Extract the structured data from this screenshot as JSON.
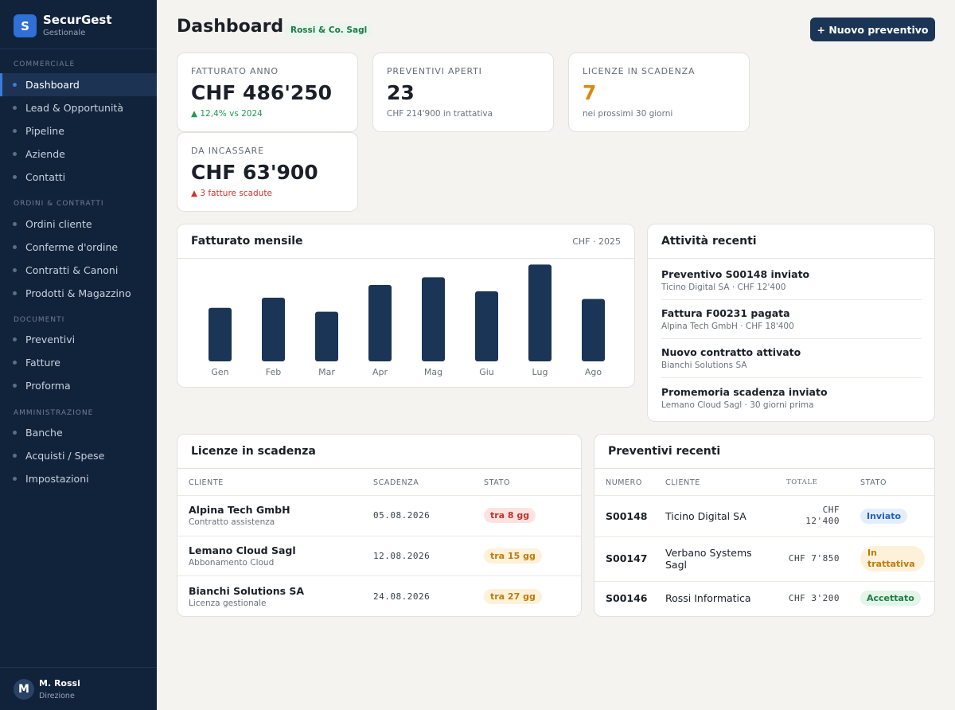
{
  "brand": {
    "logo_letter": "S",
    "name": "SecurGest",
    "subtitle": "Gestionale"
  },
  "sidebar": {
    "sections": [
      {
        "title": "COMMERCIALE",
        "items": [
          "Dashboard",
          "Lead & Opportunità",
          "Pipeline",
          "Aziende",
          "Contatti"
        ]
      },
      {
        "title": "ORDINI & CONTRATTI",
        "items": [
          "Ordini cliente",
          "Conferme d'ordine",
          "Contratti & Canoni",
          "Prodotti & Magazzino"
        ]
      },
      {
        "title": "DOCUMENTI",
        "items": [
          "Preventivi",
          "Fatture",
          "Proforma"
        ]
      },
      {
        "title": "AMMINISTRAZIONE",
        "items": [
          "Banche",
          "Acquisti / Spese",
          "Impostazioni"
        ]
      }
    ],
    "active_item": "Dashboard"
  },
  "user": {
    "initial": "M",
    "name": "M. Rossi",
    "role": "Direzione"
  },
  "header": {
    "title": "Dashboard",
    "company": "Rossi & Co. Sagl",
    "new_button": "+ Nuovo preventivo"
  },
  "kpis": [
    {
      "label": "FATTURATO ANNO",
      "value": "CHF 486'250",
      "sub": "▲ 12,4% vs 2024"
    },
    {
      "label": "PREVENTIVI APERTI",
      "value": "23",
      "sub": "CHF 214'900 in trattativa"
    },
    {
      "label": "LICENZE IN SCADENZA",
      "value": "7",
      "sub": "nei prossimi 30 giorni"
    },
    {
      "label": "DA INCASSARE",
      "value": "CHF 63'900",
      "sub": "▲ 3 fatture scadute"
    }
  ],
  "revenue_panel": {
    "title": "Fatturato mensile",
    "meta": "CHF · 2025"
  },
  "chart_data": {
    "type": "bar",
    "categories": [
      "Gen",
      "Feb",
      "Mar",
      "Apr",
      "Mag",
      "Giu",
      "Lug",
      "Ago"
    ],
    "values": [
      42,
      50,
      39,
      60,
      66,
      55,
      76,
      49
    ],
    "ylim": [
      0,
      80
    ],
    "grid": false,
    "bar_color": "#1b3556"
  },
  "activity_panel": {
    "title": "Attività recenti",
    "items": [
      {
        "title": "Preventivo S00148 inviato",
        "sub": "Ticino Digital SA · CHF 12'400"
      },
      {
        "title": "Fattura F00231 pagata",
        "sub": "Alpina Tech GmbH · CHF 18'400"
      },
      {
        "title": "Nuovo contratto attivato",
        "sub": "Bianchi Solutions SA"
      },
      {
        "title": "Promemoria scadenza inviato",
        "sub": "Lemano Cloud Sagl · 30 giorni prima"
      }
    ]
  },
  "licenses_panel": {
    "title": "Licenze in scadenza",
    "columns": [
      "CLIENTE",
      "SCADENZA",
      "STATO"
    ],
    "rows": [
      {
        "client": "Alpina Tech GmbH",
        "product": "Contratto assistenza",
        "date": "05.08.2026",
        "status": "tra 8 gg"
      },
      {
        "client": "Lemano Cloud Sagl",
        "product": "Abbonamento Cloud",
        "date": "12.08.2026",
        "status": "tra 15 gg"
      },
      {
        "client": "Bianchi Solutions SA",
        "product": "Licenza gestionale",
        "date": "24.08.2026",
        "status": "tra 27 gg"
      }
    ]
  },
  "quotes_panel": {
    "title": "Preventivi recenti",
    "columns": [
      "NUMERO",
      "CLIENTE",
      "TOTALE",
      "STATO"
    ],
    "rows": [
      {
        "number": "S00148",
        "client": "Ticino Digital SA",
        "total": "CHF 12'400",
        "status": "Inviato"
      },
      {
        "number": "S00147",
        "client": "Verbano Systems Sagl",
        "total": "CHF 7'850",
        "status": "In trattativa"
      },
      {
        "number": "S00146",
        "client": "Rossi Informatica",
        "total": "CHF 3'200",
        "status": "Accettato"
      }
    ]
  },
  "colors": {
    "sidebar_bg": "#11223b",
    "accent": "#2f6fd6",
    "primary_button": "#1b3556",
    "positive": "#1e9a55",
    "negative": "#d0342c",
    "warning": "#d98a12"
  }
}
